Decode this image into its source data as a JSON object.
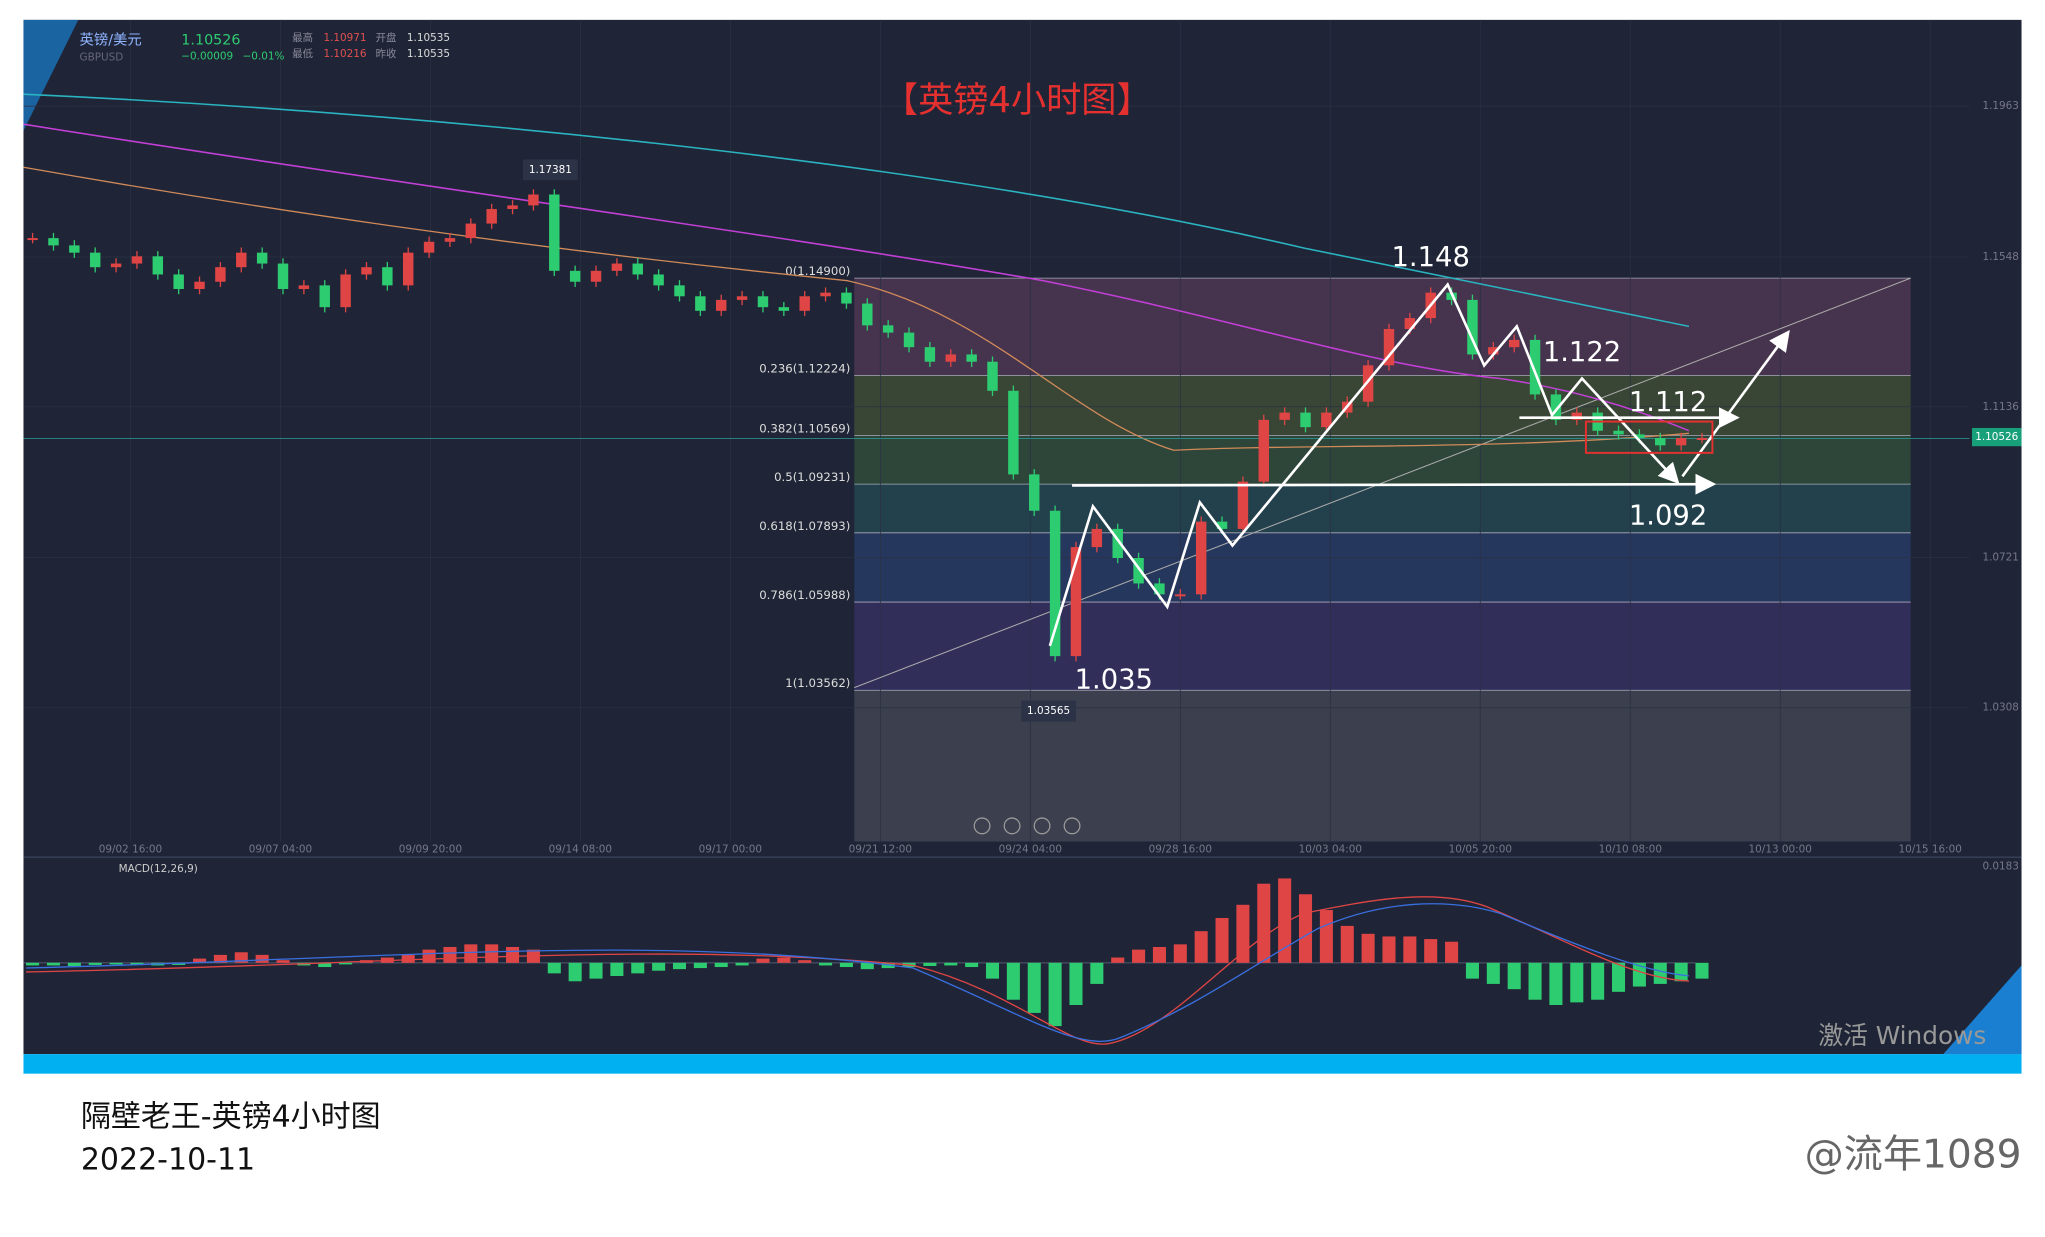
{
  "header": {
    "name": "英镑/美元",
    "symbol": "GBPUSD",
    "price": "1.10526",
    "change": "−0.00009",
    "change_pct": "−0.01%",
    "stats": [
      {
        "label": "最高",
        "value": "1.10971"
      },
      {
        "label": "开盘",
        "value": "1.10535"
      },
      {
        "label": "最低",
        "value": "1.10216"
      },
      {
        "label": "昨收",
        "value": "1.10535"
      }
    ]
  },
  "title": "【英镑4小时图】",
  "price_axis": {
    "ticks": [
      1.1963,
      1.1548,
      1.1136,
      1.0721,
      1.0308
    ],
    "current": 1.10526
  },
  "time_axis": [
    "09/02 16:00",
    "09/07 04:00",
    "09/09 20:00",
    "09/14 08:00",
    "09/17 00:00",
    "09/21 12:00",
    "09/24 04:00",
    "09/28 16:00",
    "10/03 04:00",
    "10/05 20:00",
    "10/10 08:00",
    "10/13 00:00",
    "10/15 16:00"
  ],
  "fib_levels": [
    {
      "label": "0(1.14900)",
      "price": 1.149
    },
    {
      "label": "0.236(1.12224)",
      "price": 1.12224
    },
    {
      "label": "0.382(1.10569)",
      "price": 1.10569
    },
    {
      "label": "0.5(1.09231)",
      "price": 1.09231
    },
    {
      "label": "0.618(1.07893)",
      "price": 1.07893
    },
    {
      "label": "0.786(1.05988)",
      "price": 1.05988
    },
    {
      "label": "1(1.03562)",
      "price": 1.03562
    }
  ],
  "annotations": [
    "1.148",
    "1.122",
    "1.112",
    "1.092",
    "1.035"
  ],
  "price_labels": [
    "1.17381",
    "1.03565"
  ],
  "candles": {
    "closes": [
      1.16,
      1.158,
      1.156,
      1.152,
      1.153,
      1.155,
      1.15,
      1.146,
      1.148,
      1.152,
      1.156,
      1.153,
      1.146,
      1.147,
      1.141,
      1.15,
      1.152,
      1.147,
      1.156,
      1.159,
      1.16,
      1.164,
      1.168,
      1.169,
      1.172,
      1.151,
      1.148,
      1.151,
      1.153,
      1.15,
      1.147,
      1.144,
      1.14,
      1.143,
      1.144,
      1.141,
      1.14,
      1.144,
      1.145,
      1.142,
      1.136,
      1.134,
      1.13,
      1.126,
      1.128,
      1.126,
      1.118,
      1.095,
      1.085,
      1.045,
      1.075,
      1.08,
      1.072,
      1.065,
      1.062,
      1.062,
      1.082,
      1.08,
      1.093,
      1.11,
      1.112,
      1.108,
      1.112,
      1.115,
      1.125,
      1.135,
      1.138,
      1.145,
      1.143,
      1.128,
      1.13,
      1.132,
      1.117,
      1.11,
      1.112,
      1.107,
      1.106,
      1.105,
      1.103,
      1.105,
      1.105
    ]
  },
  "macd": {
    "label": "MACD(12,26,9)",
    "top_label": 0.0183,
    "histogram": [
      -0.0005,
      -0.0005,
      -0.0006,
      -0.0004,
      -0.0003,
      -0.0004,
      -0.0005,
      -0.0004,
      0.0008,
      0.0015,
      0.002,
      0.0015,
      0.0005,
      -0.0005,
      -0.0008,
      -0.0003,
      0.0005,
      0.001,
      0.0015,
      0.0025,
      0.003,
      0.0035,
      0.0035,
      0.003,
      0.0025,
      -0.002,
      -0.0035,
      -0.003,
      -0.0025,
      -0.002,
      -0.0015,
      -0.0012,
      -0.001,
      -0.0008,
      -0.0005,
      0.0008,
      0.001,
      0.0005,
      -0.0005,
      -0.0008,
      -0.0012,
      -0.001,
      -0.0008,
      -0.0006,
      -0.0005,
      -0.0008,
      -0.003,
      -0.007,
      -0.0095,
      -0.012,
      -0.008,
      -0.004,
      0.001,
      0.0025,
      0.003,
      0.0035,
      0.006,
      0.0085,
      0.011,
      0.015,
      0.016,
      0.013,
      0.01,
      0.007,
      0.0055,
      0.005,
      0.005,
      0.0045,
      0.004,
      -0.003,
      -0.004,
      -0.005,
      -0.007,
      -0.008,
      -0.0075,
      -0.007,
      -0.0055,
      -0.0045,
      -0.004,
      -0.0035,
      -0.003
    ]
  },
  "watermark": "激活 Windows",
  "caption": {
    "line1": "隔壁老王-英镑4小时图",
    "line2": "2022-10-11"
  },
  "credit": "@流年1089"
}
